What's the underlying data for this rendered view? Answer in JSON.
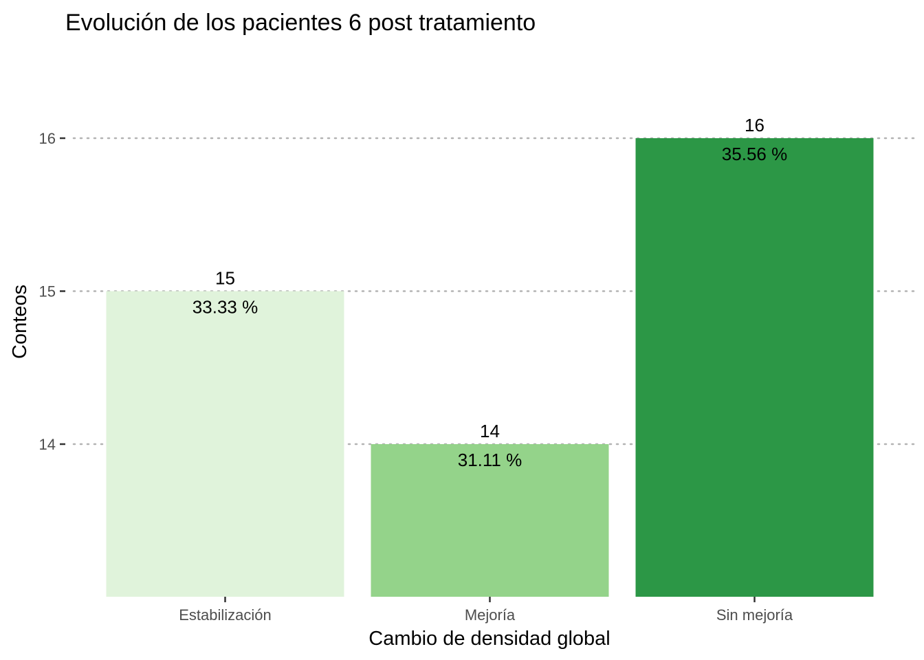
{
  "chart_data": {
    "type": "bar",
    "title": "Evolución de los pacientes 6 post tratamiento",
    "xlabel": "Cambio de densidad global",
    "ylabel": "Conteos",
    "categories": [
      "Estabilización",
      "Mejoría",
      "Sin mejoría"
    ],
    "values": [
      15,
      14,
      16
    ],
    "percent_labels": [
      "33.33 %",
      "31.11 %",
      "35.56 %"
    ],
    "colors": [
      "#e0f3db",
      "#94d38a",
      "#2c9746"
    ],
    "ylim": [
      13.0,
      16.3
    ],
    "yticks": [
      14,
      15,
      16
    ],
    "ytick_labels": [
      "14",
      "15",
      "16"
    ],
    "grid": "horizontal dotted",
    "legend": "none"
  }
}
